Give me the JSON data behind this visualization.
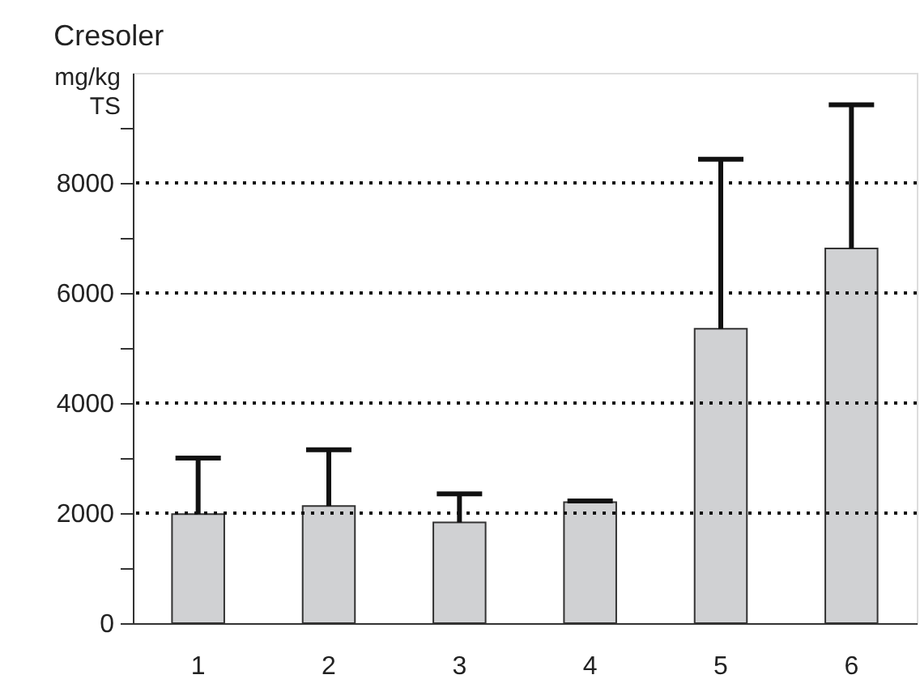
{
  "chart_data": {
    "type": "bar",
    "title": "Cresoler",
    "ylabel": "mg/kg\nTS",
    "categories": [
      "1",
      "2",
      "3",
      "4",
      "5",
      "6"
    ],
    "values": [
      1980,
      2130,
      1830,
      2200,
      5350,
      6810
    ],
    "errors": [
      [
        1980,
        3000
      ],
      [
        2130,
        3150
      ],
      [
        1830,
        2350
      ],
      [
        2200,
        2220
      ],
      [
        5350,
        8430
      ],
      [
        6810,
        9420
      ]
    ],
    "color": "#d0d1d3",
    "ylim": [
      0,
      10000
    ],
    "yticks": [
      0,
      {
        "value": 1000,
        "label": null
      },
      2000,
      {
        "value": 3000,
        "label": null
      },
      4000,
      {
        "value": 5000,
        "label": null
      },
      6000,
      {
        "value": 7000,
        "label": null
      },
      8000,
      {
        "value": 9000,
        "label": null
      }
    ],
    "grid": "y",
    "line_style": "dotted"
  }
}
